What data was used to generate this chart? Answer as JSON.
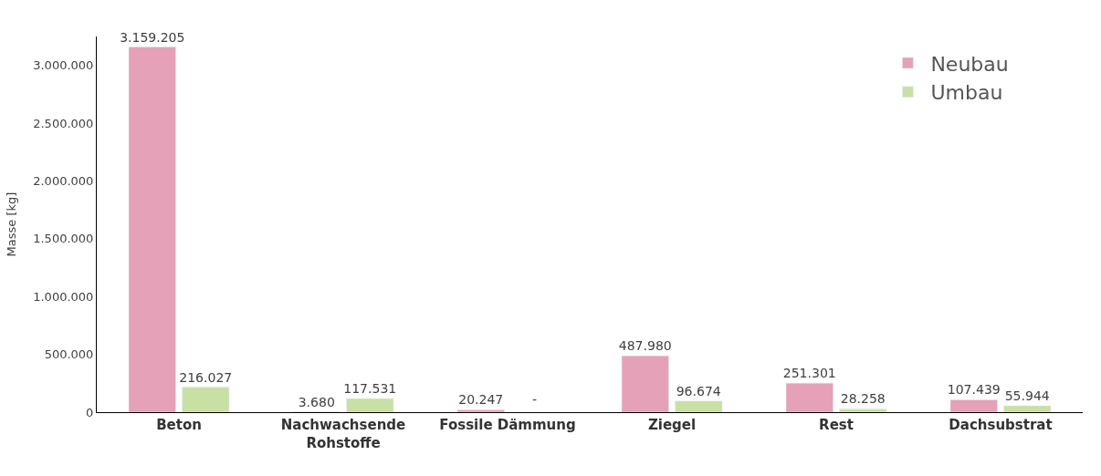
{
  "chart_data": {
    "type": "bar",
    "ylabel": "Masse [kg]",
    "categories": [
      "Beton",
      "Nachwachsende Rohstoffe",
      "Fossile Dämmung",
      "Ziegel",
      "Rest",
      "Dachsubstrat"
    ],
    "series": [
      {
        "name": "Neubau",
        "color": "#e4a1b8",
        "values": [
          3159205,
          3680,
          20247,
          487980,
          251301,
          107439
        ],
        "value_labels": [
          "3.159.205",
          "3.680",
          "20.247",
          "487.980",
          "251.301",
          "107.439"
        ]
      },
      {
        "name": "Umbau",
        "color": "#c9e0a5",
        "values": [
          216027,
          117531,
          null,
          96674,
          28258,
          55944
        ],
        "value_labels": [
          "216.027",
          "117.531",
          "-",
          "96.674",
          "28.258",
          "55.944"
        ]
      }
    ],
    "ylim": [
      0,
      3250000
    ],
    "yticks": [
      {
        "value": 0,
        "label": "0"
      },
      {
        "value": 500000,
        "label": "500.000"
      },
      {
        "value": 1000000,
        "label": "1.000.000"
      },
      {
        "value": 1500000,
        "label": "1.500.000"
      },
      {
        "value": 2000000,
        "label": "2.000.000"
      },
      {
        "value": 2500000,
        "label": "2.500.000"
      },
      {
        "value": 3000000,
        "label": "3.000.000"
      }
    ],
    "grid": false,
    "legend": "top right"
  }
}
